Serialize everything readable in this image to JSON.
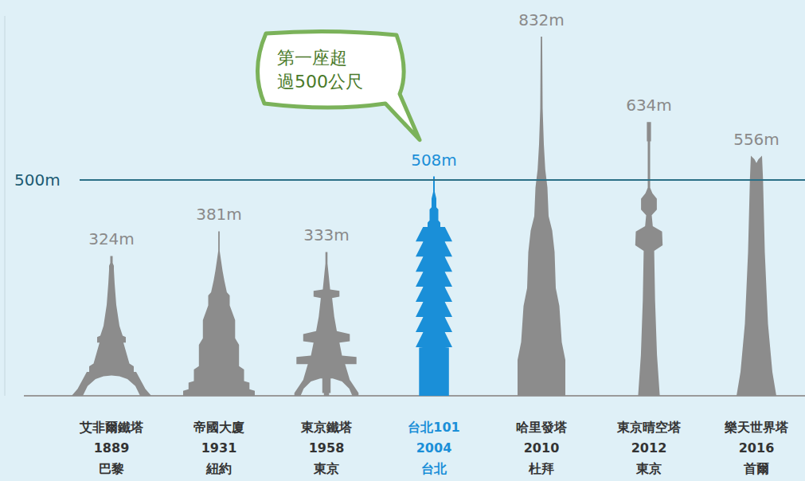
{
  "chart_data": {
    "type": "bar",
    "categories": [
      "艾非爾鐵塔",
      "帝國大廈",
      "東京鐵塔",
      "台北101",
      "哈里發塔",
      "東京晴空塔",
      "樂天世界塔"
    ],
    "values": [
      324,
      381,
      333,
      508,
      832,
      634,
      556
    ],
    "value_labels": [
      "324m",
      "381m",
      "333m",
      "508m",
      "832m",
      "634m",
      "556m"
    ],
    "years": [
      1889,
      1931,
      1958,
      2004,
      2010,
      2012,
      2016
    ],
    "cities": [
      "巴黎",
      "紐約",
      "東京",
      "台北",
      "杜拜",
      "東京",
      "首爾"
    ],
    "colors": [
      "#8c8c8c",
      "#8c8c8c",
      "#8c8c8c",
      "#1a8fd8",
      "#8c8c8c",
      "#8c8c8c",
      "#8c8c8c"
    ],
    "ylim": [
      0,
      880
    ],
    "tick_labels": false,
    "grid": false,
    "data_labels": true,
    "reference_line": {
      "value": 500,
      "label": "500m"
    },
    "annotations": [
      {
        "text": "第一座超過500公尺",
        "x": "台北101"
      }
    ]
  }
}
